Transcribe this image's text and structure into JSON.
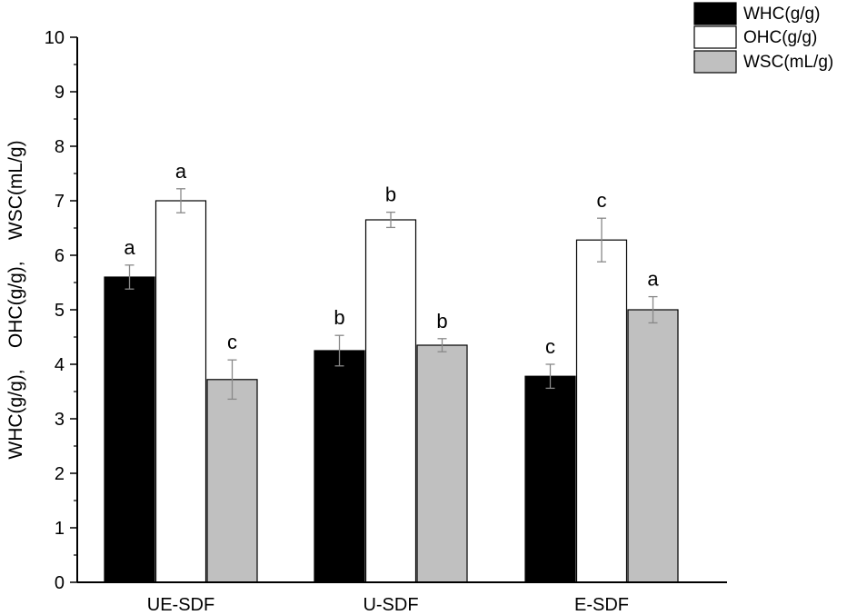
{
  "chart_data": {
    "type": "bar",
    "categories": [
      "UE-SDF",
      "U-SDF",
      "E-SDF"
    ],
    "series": [
      {
        "name": "WHC(g/g)",
        "color": "#000000",
        "values": [
          5.6,
          4.25,
          3.78
        ],
        "errors": [
          0.22,
          0.28,
          0.22
        ],
        "labels": [
          "a",
          "b",
          "c"
        ]
      },
      {
        "name": "OHC(g/g)",
        "color": "#ffffff",
        "values": [
          7.0,
          6.65,
          6.28
        ],
        "errors": [
          0.22,
          0.14,
          0.4
        ],
        "labels": [
          "a",
          "b",
          "c"
        ]
      },
      {
        "name": "WSC(mL/g)",
        "color": "#c0c0c0",
        "values": [
          3.72,
          4.35,
          5.0
        ],
        "errors": [
          0.36,
          0.12,
          0.24
        ],
        "labels": [
          "c",
          "b",
          "a"
        ]
      }
    ],
    "ylabel": "WHC(g/g),    OHC(g/g),    WSC(mL/g)",
    "xlabel": "",
    "ylim": [
      0,
      10
    ],
    "yticks": [
      "0",
      "1",
      "2",
      "3",
      "4",
      "5",
      "6",
      "7",
      "8",
      "9",
      "10"
    ],
    "legend_position": "top-right",
    "grid": false
  }
}
